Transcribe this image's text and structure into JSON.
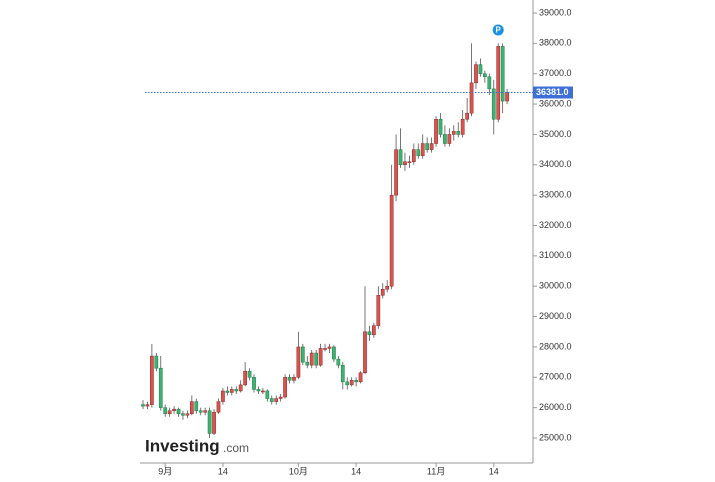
{
  "chart_data": {
    "type": "candlestick",
    "brand": "Investing",
    "brand_suffix": ".com",
    "marker": "P",
    "categories": [
      null,
      null,
      null,
      null,
      null,
      "9月",
      null,
      null,
      null,
      null,
      null,
      null,
      null,
      null,
      null,
      null,
      null,
      null,
      "14",
      null,
      null,
      null,
      null,
      null,
      null,
      null,
      null,
      null,
      null,
      null,
      null,
      null,
      null,
      null,
      null,
      "10月",
      null,
      null,
      null,
      null,
      null,
      null,
      null,
      null,
      null,
      null,
      null,
      null,
      "14",
      null,
      null,
      null,
      null,
      null,
      null,
      null,
      null,
      null,
      null,
      null,
      null,
      null,
      null,
      null,
      null,
      null,
      "11月",
      null,
      null,
      null,
      null,
      null,
      null,
      null,
      null,
      null,
      null,
      null,
      null,
      "14",
      null,
      null,
      null
    ],
    "open": [
      26100,
      26050,
      26100,
      27700,
      27300,
      26000,
      25800,
      25900,
      25950,
      25800,
      25750,
      25800,
      26200,
      25900,
      25850,
      25900,
      25150,
      25850,
      26200,
      26550,
      26500,
      26600,
      26550,
      26750,
      27200,
      27000,
      26600,
      26550,
      26550,
      26300,
      26200,
      26300,
      26350,
      27000,
      26900,
      27000,
      28000,
      27500,
      27400,
      27800,
      27400,
      27950,
      27950,
      28000,
      27600,
      27400,
      26850,
      26750,
      26900,
      26850,
      27150,
      28500,
      28400,
      28700,
      29700,
      29900,
      30000,
      33000,
      34500,
      34000,
      34100,
      34100,
      34500,
      34300,
      34700,
      34500,
      34700,
      35500,
      35000,
      34700,
      35000,
      35100,
      35000,
      35500,
      35700,
      36700,
      37300,
      37000,
      36900,
      36500,
      35500,
      37900,
      36100
    ],
    "high": [
      26250,
      26200,
      28100,
      27800,
      27700,
      26100,
      26000,
      26050,
      26000,
      25900,
      25900,
      26400,
      26300,
      26000,
      26000,
      26000,
      25950,
      26300,
      26650,
      26700,
      26700,
      26700,
      26900,
      27500,
      27300,
      27100,
      26700,
      26650,
      26600,
      26400,
      26400,
      26450,
      27100,
      27100,
      27100,
      28500,
      28100,
      27700,
      27900,
      27900,
      28100,
      28100,
      28100,
      28050,
      27700,
      27500,
      27000,
      27000,
      27000,
      27200,
      30000,
      28700,
      28800,
      30000,
      30100,
      30200,
      34000,
      35000,
      35200,
      34400,
      34300,
      34700,
      34700,
      35000,
      34900,
      34900,
      35600,
      35700,
      35300,
      35200,
      35300,
      35400,
      35800,
      36200,
      38000,
      37400,
      37500,
      37100,
      37000,
      36800,
      38000,
      38000,
      36500
    ],
    "low": [
      25950,
      25950,
      26000,
      27200,
      25900,
      25700,
      25700,
      25800,
      25700,
      25600,
      25650,
      25750,
      25800,
      25750,
      25750,
      25000,
      25100,
      25800,
      26100,
      26400,
      26400,
      26450,
      26500,
      26700,
      26900,
      26500,
      26450,
      26450,
      26200,
      26100,
      26100,
      26200,
      26300,
      26800,
      26800,
      26950,
      27400,
      27300,
      27300,
      27300,
      27350,
      27850,
      27800,
      27500,
      27300,
      26600,
      26600,
      26700,
      26700,
      26800,
      27100,
      28200,
      28300,
      28600,
      29600,
      29800,
      29900,
      32800,
      33900,
      33800,
      33900,
      34000,
      34200,
      34200,
      34400,
      34400,
      34600,
      34900,
      34600,
      34600,
      34800,
      34900,
      34900,
      35400,
      35600,
      36500,
      36900,
      36700,
      36300,
      35000,
      35400,
      35700,
      36000
    ],
    "close": [
      26050,
      26100,
      27700,
      27300,
      26000,
      25800,
      25900,
      25950,
      25800,
      25750,
      25800,
      26200,
      25900,
      25850,
      25900,
      25150,
      25850,
      26200,
      26550,
      26500,
      26600,
      26550,
      26750,
      27200,
      27000,
      26600,
      26550,
      26550,
      26300,
      26200,
      26300,
      26350,
      27000,
      26900,
      27000,
      28000,
      27500,
      27400,
      27800,
      27400,
      27950,
      27950,
      28000,
      27600,
      27400,
      26850,
      26750,
      26900,
      26850,
      27150,
      28500,
      28400,
      28700,
      29700,
      29900,
      30000,
      33000,
      34500,
      34000,
      34100,
      34100,
      34500,
      34300,
      34700,
      34500,
      34700,
      35500,
      35000,
      34700,
      35000,
      35100,
      35000,
      35500,
      35700,
      36700,
      37300,
      37000,
      36900,
      36500,
      35500,
      37900,
      36100,
      36381
    ],
    "up_color": "#d9534f",
    "down_color": "#3cb371",
    "ylim": [
      24177,
      39428
    ],
    "yticks": [
      {
        "value": 25000,
        "label": "25000.0"
      },
      {
        "value": 26000,
        "label": "26000.0"
      },
      {
        "value": 27000,
        "label": "27000.0"
      },
      {
        "value": 28000,
        "label": "28000.0"
      },
      {
        "value": 29000,
        "label": "29000.0"
      },
      {
        "value": 30000,
        "label": "30000.0"
      },
      {
        "value": 31000,
        "label": "31000.0"
      },
      {
        "value": 32000,
        "label": "32000.0"
      },
      {
        "value": 33000,
        "label": "33000.0"
      },
      {
        "value": 34000,
        "label": "34000.0"
      },
      {
        "value": 35000,
        "label": "35000.0"
      },
      {
        "value": 36000,
        "label": "36000.0"
      },
      {
        "value": 37000,
        "label": "37000.0"
      },
      {
        "value": 38000,
        "label": "38000.0"
      },
      {
        "value": 39000,
        "label": "39000.0"
      }
    ],
    "last_price": {
      "value": 36381,
      "label": "36381.0"
    },
    "last_price_color": "#3d6fd6"
  }
}
